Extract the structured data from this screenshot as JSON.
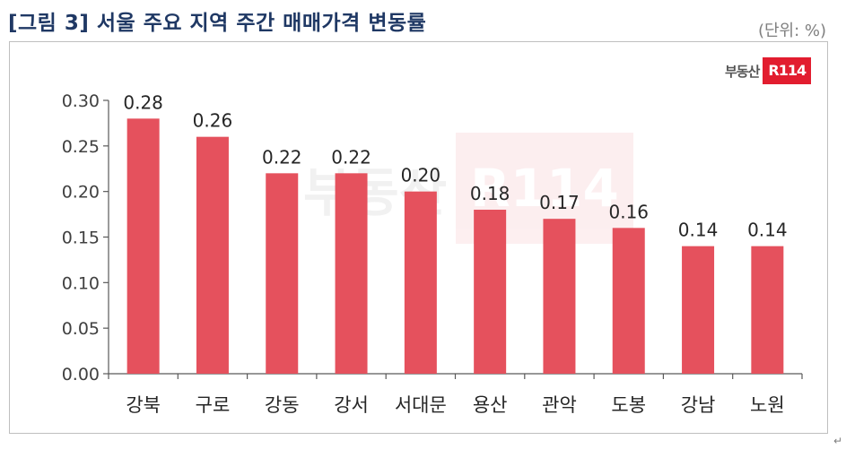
{
  "header": {
    "title": "[그림 3] 서울 주요 지역 주간 매매가격 변동률",
    "unit": "(단위: %)"
  },
  "logo": {
    "text": "부동산",
    "badge": "R114"
  },
  "colors": {
    "bar": "#e5515d",
    "title": "#1f3864",
    "logo_red": "#e21d2f"
  },
  "chart_data": {
    "type": "bar",
    "title": "[그림 3] 서울 주요 지역 주간 매매가격 변동률",
    "xlabel": "",
    "ylabel": "",
    "unit": "(단위: %)",
    "categories": [
      "강북",
      "구로",
      "강동",
      "강서",
      "서대문",
      "용산",
      "관악",
      "도봉",
      "강남",
      "노원"
    ],
    "values": [
      0.28,
      0.26,
      0.22,
      0.22,
      0.2,
      0.18,
      0.17,
      0.16,
      0.14,
      0.14
    ],
    "data_labels": [
      "0.28",
      "0.26",
      "0.22",
      "0.22",
      "0.20",
      "0.18",
      "0.17",
      "0.16",
      "0.14",
      "0.14"
    ],
    "yticks": [
      "0.00",
      "0.05",
      "0.10",
      "0.15",
      "0.20",
      "0.25",
      "0.30"
    ],
    "ylim": [
      0,
      0.3
    ],
    "grid": false,
    "legend": "none"
  }
}
